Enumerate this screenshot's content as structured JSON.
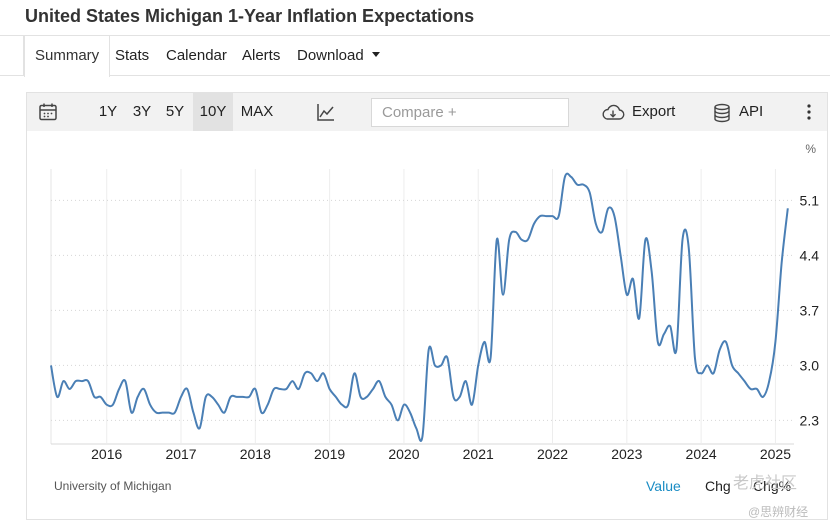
{
  "page": {
    "title": "United States Michigan 1-Year Inflation Expectations"
  },
  "tabs": [
    {
      "label": "Summary",
      "active": true
    },
    {
      "label": "Stats"
    },
    {
      "label": "Calendar"
    },
    {
      "label": "Alerts"
    },
    {
      "label": "Download"
    }
  ],
  "toolbar": {
    "calendar_icon": "calendar-icon",
    "ranges": [
      {
        "label": "1Y"
      },
      {
        "label": "3Y"
      },
      {
        "label": "5Y"
      },
      {
        "label": "10Y",
        "active": true
      },
      {
        "label": "MAX"
      }
    ],
    "chart_type_icon": "line-chart-icon",
    "compare_placeholder": "Compare +",
    "export_label": "Export",
    "export_icon": "cloud-download-icon",
    "api_label": "API",
    "api_icon": "database-icon",
    "more_icon": "vertical-dots-icon"
  },
  "chart_data": {
    "type": "line",
    "title": "",
    "xlabel": "",
    "ylabel": "%",
    "x_ticks": [
      "2016",
      "2017",
      "2018",
      "2019",
      "2020",
      "2021",
      "2022",
      "2023",
      "2024",
      "2025"
    ],
    "y_ticks": [
      "2.3",
      "3.0",
      "3.7",
      "4.4",
      "5.1"
    ],
    "ylim": [
      2.0,
      5.5
    ],
    "xlim": [
      "2015-04",
      "2025-04"
    ],
    "grid": true,
    "line_color": "#4a7fb5",
    "series": [
      {
        "x": [
          "2015-04",
          "2015-05",
          "2015-06",
          "2015-07",
          "2015-08",
          "2015-09",
          "2015-10",
          "2015-11",
          "2015-12",
          "2016-01",
          "2016-02",
          "2016-03",
          "2016-04",
          "2016-05",
          "2016-06",
          "2016-07",
          "2016-08",
          "2016-09",
          "2016-10",
          "2016-11",
          "2016-12",
          "2017-01",
          "2017-02",
          "2017-03",
          "2017-04",
          "2017-05",
          "2017-06",
          "2017-07",
          "2017-08",
          "2017-09",
          "2017-10",
          "2017-11",
          "2017-12",
          "2018-01",
          "2018-02",
          "2018-03",
          "2018-04",
          "2018-05",
          "2018-06",
          "2018-07",
          "2018-08",
          "2018-09",
          "2018-10",
          "2018-11",
          "2018-12",
          "2019-01",
          "2019-02",
          "2019-03",
          "2019-04",
          "2019-05",
          "2019-06",
          "2019-07",
          "2019-08",
          "2019-09",
          "2019-10",
          "2019-11",
          "2019-12",
          "2020-01",
          "2020-02",
          "2020-03",
          "2020-04",
          "2020-05",
          "2020-06",
          "2020-07",
          "2020-08",
          "2020-09",
          "2020-10",
          "2020-11",
          "2020-12",
          "2021-01",
          "2021-02",
          "2021-03",
          "2021-04",
          "2021-05",
          "2021-06",
          "2021-07",
          "2021-08",
          "2021-09",
          "2021-10",
          "2021-11",
          "2021-12",
          "2022-01",
          "2022-02",
          "2022-03",
          "2022-04",
          "2022-05",
          "2022-06",
          "2022-07",
          "2022-08",
          "2022-09",
          "2022-10",
          "2022-11",
          "2022-12",
          "2023-01",
          "2023-02",
          "2023-03",
          "2023-04",
          "2023-05",
          "2023-06",
          "2023-07",
          "2023-08",
          "2023-09",
          "2023-10",
          "2023-11",
          "2023-12",
          "2024-01",
          "2024-02",
          "2024-03",
          "2024-04",
          "2024-05",
          "2024-06",
          "2024-07",
          "2024-08",
          "2024-09",
          "2024-10",
          "2024-11",
          "2024-12",
          "2025-01",
          "2025-02",
          "2025-03"
        ],
        "values": [
          3.0,
          2.6,
          2.8,
          2.7,
          2.8,
          2.8,
          2.8,
          2.6,
          2.6,
          2.5,
          2.5,
          2.7,
          2.8,
          2.4,
          2.6,
          2.7,
          2.5,
          2.4,
          2.4,
          2.4,
          2.4,
          2.6,
          2.7,
          2.4,
          2.2,
          2.6,
          2.6,
          2.5,
          2.4,
          2.6,
          2.6,
          2.6,
          2.6,
          2.7,
          2.4,
          2.5,
          2.7,
          2.7,
          2.7,
          2.8,
          2.7,
          2.9,
          2.9,
          2.8,
          2.9,
          2.7,
          2.6,
          2.5,
          2.5,
          2.9,
          2.6,
          2.6,
          2.7,
          2.8,
          2.6,
          2.5,
          2.3,
          2.5,
          2.4,
          2.2,
          2.1,
          3.2,
          3.0,
          3.0,
          3.1,
          2.6,
          2.6,
          2.8,
          2.5,
          3.0,
          3.3,
          3.1,
          4.6,
          3.9,
          4.6,
          4.7,
          4.6,
          4.6,
          4.8,
          4.9,
          4.9,
          4.9,
          4.9,
          5.4,
          5.4,
          5.3,
          5.3,
          5.2,
          4.8,
          4.7,
          5.0,
          4.9,
          4.4,
          3.9,
          4.1,
          3.6,
          4.6,
          4.2,
          3.3,
          3.4,
          3.5,
          3.2,
          4.6,
          4.5,
          3.1,
          2.9,
          3.0,
          2.9,
          3.2,
          3.3,
          3.0,
          2.9,
          2.8,
          2.7,
          2.7,
          2.6,
          2.8,
          3.3,
          4.3,
          5.0
        ]
      }
    ]
  },
  "footer": {
    "source": "University of Michigan",
    "value_label": "Value",
    "chg_label": "Chg",
    "chgpct_label": "Chg%"
  },
  "overlay": {
    "watermark1": "老虎社区",
    "watermark2": "@思辨财经"
  }
}
